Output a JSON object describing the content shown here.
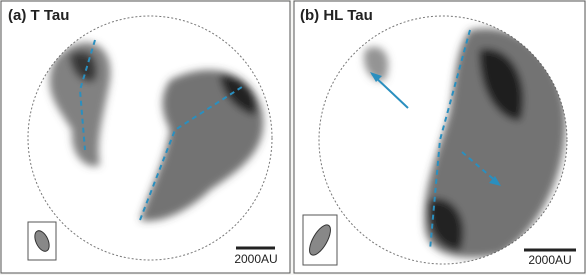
{
  "panels": [
    {
      "label": "(a) T Tau",
      "scale_label": "2000AU"
    },
    {
      "label": "(b) HL Tau",
      "scale_label": "2000AU"
    }
  ]
}
